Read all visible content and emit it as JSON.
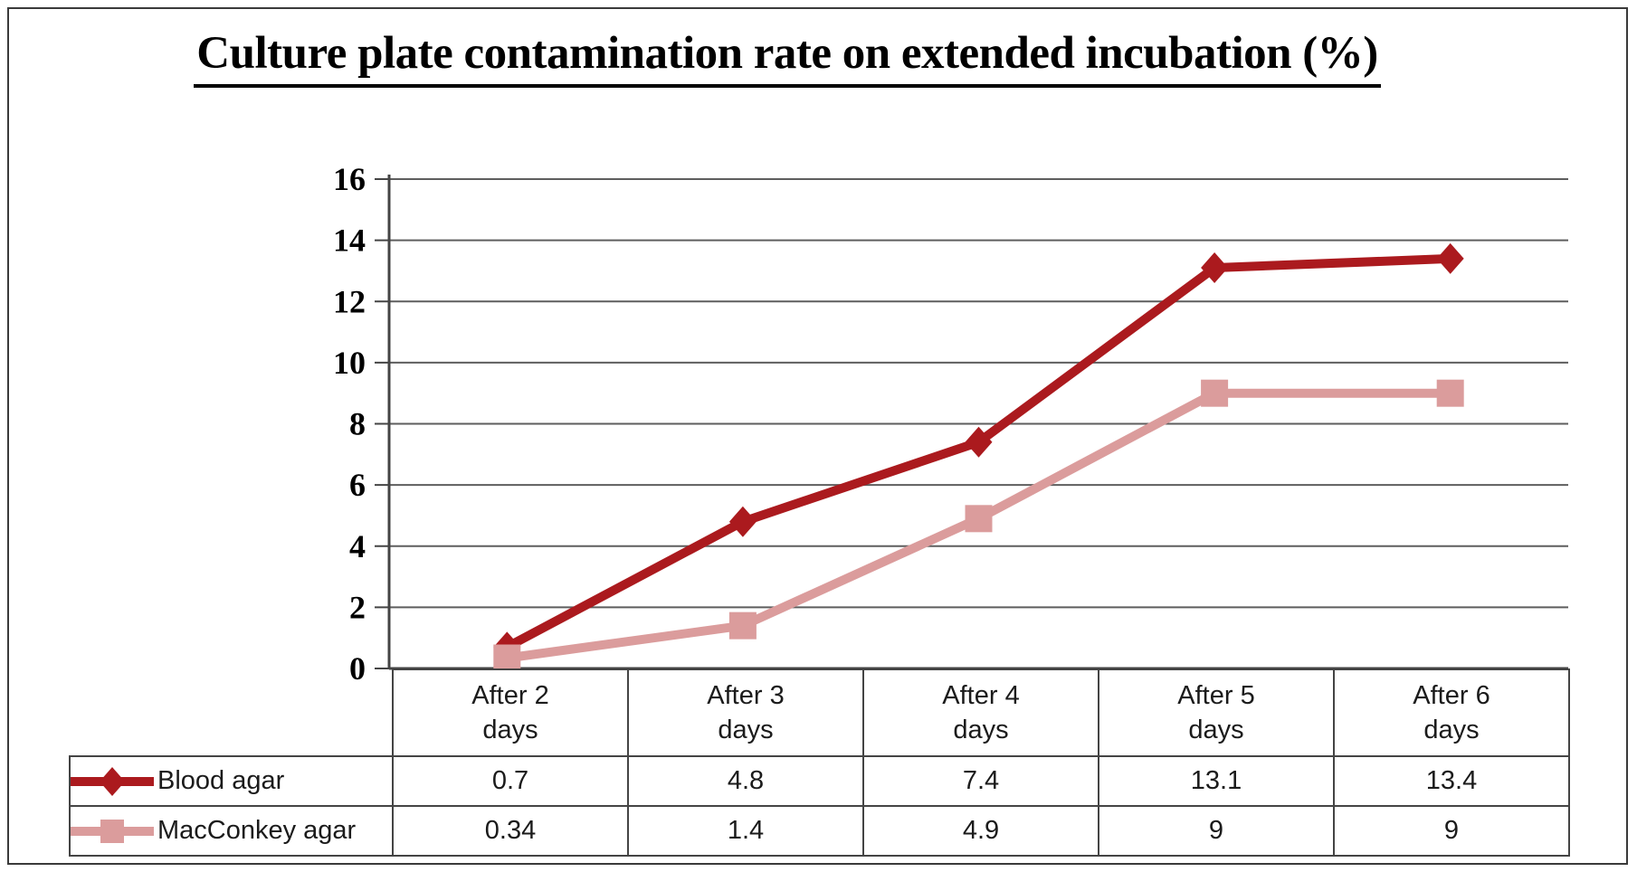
{
  "title": {
    "text": "Culture plate contamination rate on extended incubation (%)"
  },
  "chart_data": {
    "type": "line",
    "title": "Culture plate contamination rate on extended incubation (%)",
    "categories": [
      "After 2 days",
      "After 3 days",
      "After 4 days",
      "After 5 days",
      "After 6 days"
    ],
    "series": [
      {
        "name": "Blood agar",
        "marker": "diamond",
        "color": "#AB1A1E",
        "values": [
          0.7,
          4.8,
          7.4,
          13.1,
          13.4
        ]
      },
      {
        "name": "MacConkey agar",
        "marker": "square",
        "color": "#DB9C9C",
        "values": [
          0.34,
          1.4,
          4.9,
          9,
          9
        ]
      }
    ],
    "xlabel": "",
    "ylabel": "",
    "ylim": [
      0,
      16
    ],
    "yticks": [
      16,
      14,
      12,
      10,
      8,
      6,
      4,
      2,
      0
    ],
    "grid": true,
    "gridline_color": "#5e5e5e",
    "axis_color": "#444444",
    "tick_label_color": "#000000",
    "legend_position": "data-table-left",
    "data_table_shown": true
  }
}
